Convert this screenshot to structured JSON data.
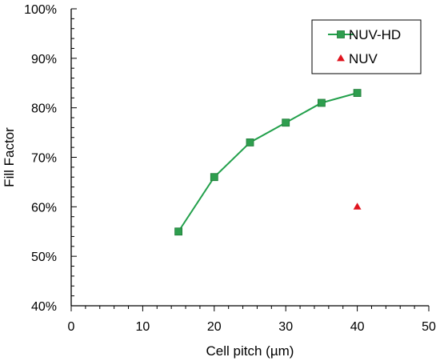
{
  "chart_data": {
    "type": "scatter",
    "title": "",
    "xlabel": "Cell pitch (µm)",
    "ylabel": "Fill Factor",
    "xlim": [
      0,
      50
    ],
    "ylim": [
      40,
      100
    ],
    "x_ticks": [
      "0",
      "10",
      "20",
      "30",
      "40",
      "50"
    ],
    "y_ticks": [
      "40%",
      "50%",
      "60%",
      "70%",
      "80%",
      "90%",
      "100%"
    ],
    "grid": false,
    "legend_position": "top-right",
    "series": [
      {
        "name": "NUV-HD",
        "marker": "square",
        "line": true,
        "color": "#22a04b",
        "marker_color": "#2e9e4e",
        "points": [
          {
            "x": 15,
            "y": 55
          },
          {
            "x": 20,
            "y": 66
          },
          {
            "x": 25,
            "y": 73
          },
          {
            "x": 30,
            "y": 77
          },
          {
            "x": 35,
            "y": 81
          },
          {
            "x": 40,
            "y": 83
          }
        ]
      },
      {
        "name": "NUV",
        "marker": "triangle",
        "line": false,
        "color": "#e0141e",
        "marker_color": "#e0141e",
        "points": [
          {
            "x": 40,
            "y": 60
          }
        ]
      }
    ]
  }
}
